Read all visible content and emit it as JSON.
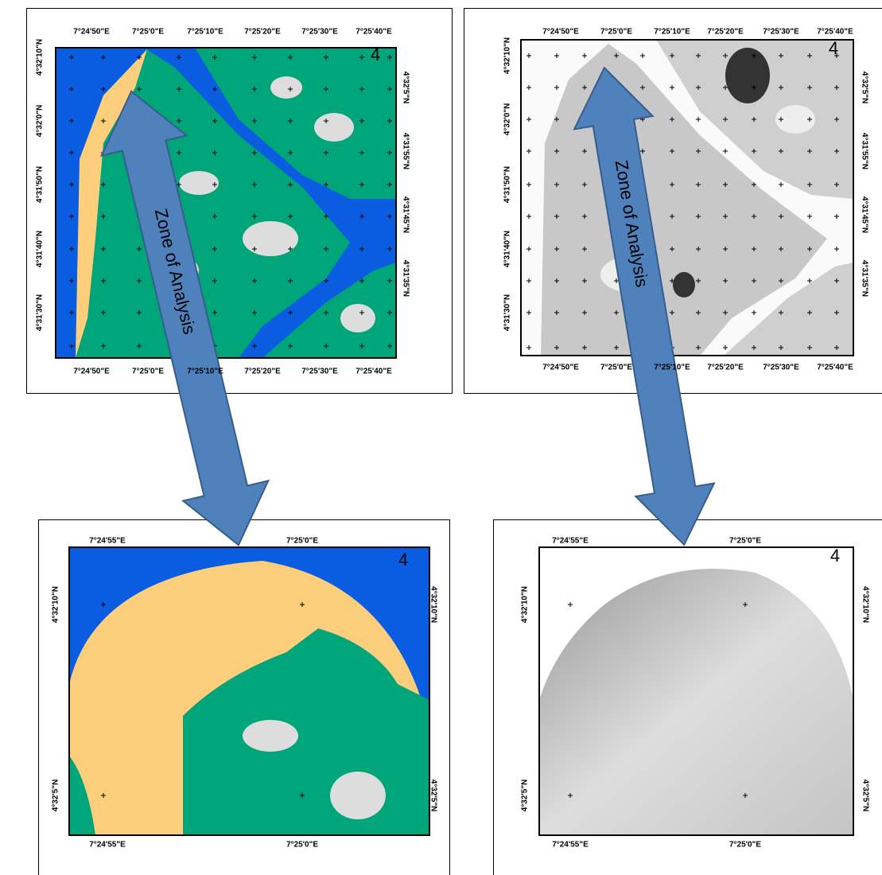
{
  "panels": [
    {
      "number": "4",
      "top_labels": [
        "7°24'50\"E",
        "7°25'0\"E",
        "7°25'10\"E",
        "7°25'20\"E",
        "7°25'30\"E",
        "7°25'40\"E"
      ],
      "bottom_labels": [
        "7°24'50\"E",
        "7°25'0\"E",
        "7°25'10\"E",
        "7°25'20\"E",
        "7°25'30\"E",
        "7°25'40\"E"
      ],
      "left_labels": [
        "4°32'10\"N",
        "4°32'0\"N",
        "4°31'50\"N",
        "4°31'40\"N",
        "4°31'30\"N"
      ],
      "right_labels": [
        "4°32'5\"N",
        "4°31'55\"N",
        "4°31'45\"N",
        "4°31'35\"N"
      ]
    },
    {
      "number": "4",
      "top_labels": [
        "7°24'50\"E",
        "7°25'0\"E",
        "7°25'10\"E",
        "7°25'20\"E",
        "7°25'30\"E",
        "7°25'40\"E"
      ],
      "bottom_labels": [
        "7°24'50\"E",
        "7°25'0\"E",
        "7°25'10\"E",
        "7°25'20\"E",
        "7°25'30\"E",
        "7°25'40\"E"
      ],
      "left_labels": [
        "4°32'10\"N",
        "4°32'0\"N",
        "4°31'50\"N",
        "4°31'40\"N",
        "4°31'30\"N"
      ],
      "right_labels": [
        "4°32'5\"N",
        "4°31'55\"N",
        "4°31'45\"N",
        "4°31'35\"N"
      ]
    },
    {
      "number": "4",
      "top_labels": [
        "7°24'55\"E",
        "7°25'0\"E"
      ],
      "bottom_labels": [
        "7°24'55\"E",
        "7°25'0\"E"
      ],
      "left_labels": [
        "4°32'10\"N",
        "4°32'5\"N"
      ],
      "right_labels": [
        "4°32'10\"N",
        "4°32'5\"N"
      ]
    },
    {
      "number": "4",
      "top_labels": [
        "7°24'55\"E",
        "7°25'0\"E"
      ],
      "bottom_labels": [
        "7°24'55\"E",
        "7°25'0\"E"
      ],
      "left_labels": [
        "4°32'10\"N",
        "4°32'5\"N"
      ],
      "right_labels": [
        "4°32'10\"N",
        "4°32'5\"N"
      ]
    }
  ],
  "arrows": [
    {
      "label": "Zone of Analysis"
    },
    {
      "label": "Zone of Analysis"
    }
  ]
}
